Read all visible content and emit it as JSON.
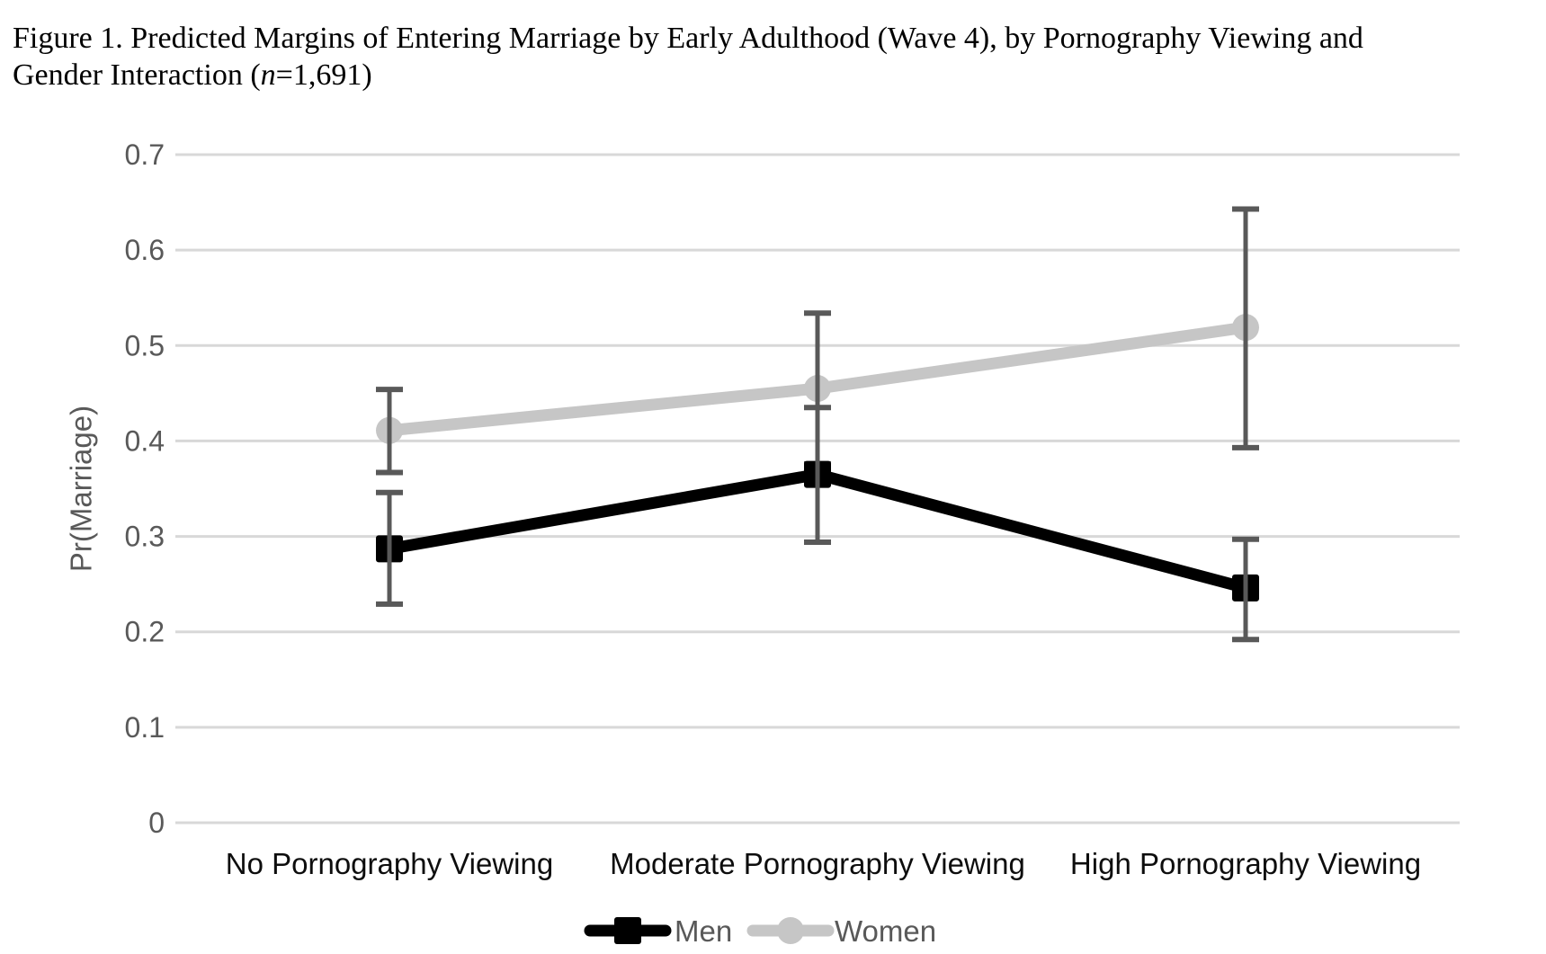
{
  "title": {
    "line1": "Figure 1. Predicted Margins of Entering Marriage by Early Adulthood (Wave 4), by Pornography Viewing and",
    "line2_prefix": "Gender Interaction (",
    "line2_italic": "n",
    "line2_suffix": "=1,691)"
  },
  "chart_data": {
    "type": "line",
    "categories": [
      "No Pornography Viewing",
      "Moderate Pornography Viewing",
      "High Pornography Viewing"
    ],
    "series": [
      {
        "name": "Men",
        "marker": "square",
        "color": "#000000",
        "values": [
          0.287,
          0.365,
          0.246
        ],
        "ci_low": [
          0.229,
          0.294,
          0.192
        ],
        "ci_high": [
          0.346,
          0.435,
          0.297
        ]
      },
      {
        "name": "Women",
        "marker": "circle",
        "color": "#c6c6c6",
        "values": [
          0.411,
          0.455,
          0.519
        ],
        "ci_low": [
          0.367,
          0.376,
          0.393
        ],
        "ci_high": [
          0.454,
          0.534,
          0.643
        ]
      }
    ],
    "ylabel": "Pr(Marriage)",
    "xlabel": "",
    "ylim": [
      0,
      0.7
    ],
    "ytick_step": 0.1,
    "ytick_labels": [
      "0",
      "0.1",
      "0.2",
      "0.3",
      "0.4",
      "0.5",
      "0.6",
      "0.7"
    ],
    "grid": true,
    "error_bars": true,
    "legend_position": "bottom",
    "colors": {
      "gridline": "#d8d8d8",
      "error_bar": "#595959",
      "y_tick_label": "#595959",
      "x_tick_label": "#0d0d0d",
      "axis_title": "#595959",
      "legend_text": "#595959"
    }
  }
}
